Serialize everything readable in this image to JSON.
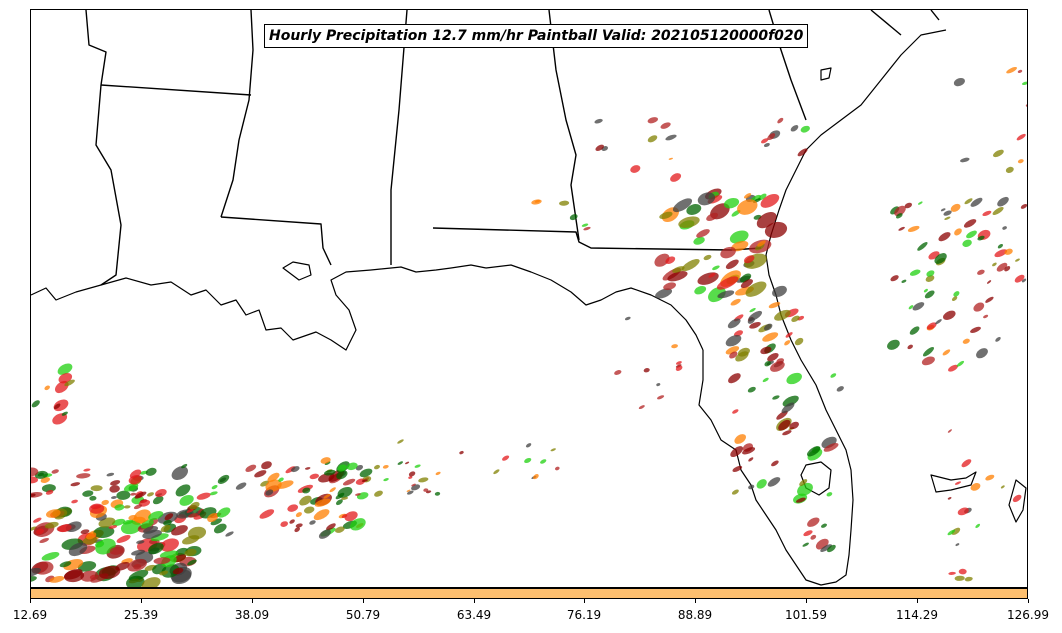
{
  "title": "Hourly Precipitation 12.7 mm/hr Paintball Valid: 202105120000f020",
  "colorbar": {
    "color": "#fdbf6f",
    "ticks": [
      "12.69",
      "25.39",
      "38.09",
      "50.79",
      "63.49",
      "76.19",
      "88.89",
      "101.59",
      "114.29",
      "126.99"
    ]
  },
  "paintball_colors": [
    "#e31a1c",
    "#ff7f00",
    "#1fd00f",
    "#8b0000",
    "#808000",
    "#006400",
    "#404040",
    "#b22222"
  ],
  "map": {
    "region": "Gulf Coast and Florida",
    "land_color": "#ffffff",
    "border_color": "#000000"
  }
}
